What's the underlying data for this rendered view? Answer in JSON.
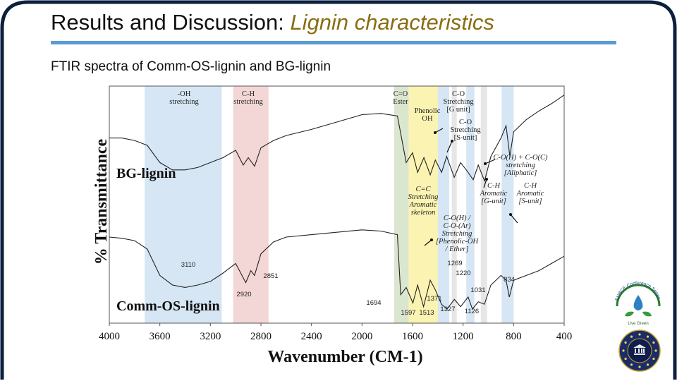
{
  "slide": {
    "title_main": "Results and Discussion: ",
    "title_highlight": "Lignin characteristics",
    "subtitle": "FTIR spectra of Comm-OS-lignin and BG-lignin"
  },
  "logos": {
    "conference_text": "EUBCE Conference Series",
    "conference_caption": "Live Green"
  },
  "colors": {
    "frame": "#0b1f3f",
    "title_rule": "#5b9bd5",
    "title_highlight": "#8a6d12",
    "band_blue": "#d6e6f4",
    "band_pink": "#f3d6d6",
    "band_green": "#dbe6cf",
    "band_yellow": "#fbf3b2",
    "band_grey": "#e6e6e6"
  },
  "chart_data": {
    "type": "line",
    "xlabel": "Wavenumber (CM-1)",
    "ylabel": "% Transmittance",
    "xlim": [
      4000,
      400
    ],
    "x_reversed": true,
    "x_ticks": [
      "4000",
      "3600",
      "3200",
      "2800",
      "2400",
      "2000",
      "1600",
      "1200",
      "800",
      "400"
    ],
    "grid": false,
    "series": [
      {
        "name": "BG-lignin",
        "x": [
          4000,
          3900,
          3800,
          3700,
          3600,
          3500,
          3400,
          3300,
          3200,
          3100,
          3000,
          2940,
          2900,
          2850,
          2800,
          2700,
          2600,
          2400,
          2200,
          2000,
          1850,
          1720,
          1650,
          1600,
          1560,
          1510,
          1460,
          1420,
          1370,
          1330,
          1270,
          1220,
          1160,
          1120,
          1080,
          1030,
          980,
          900,
          860,
          830,
          800,
          700,
          600,
          500,
          400
        ],
        "y": [
          0.4,
          0.4,
          0.42,
          0.46,
          0.6,
          0.66,
          0.66,
          0.64,
          0.6,
          0.56,
          0.5,
          0.62,
          0.56,
          0.63,
          0.48,
          0.42,
          0.38,
          0.33,
          0.27,
          0.21,
          0.2,
          0.22,
          0.6,
          0.52,
          0.68,
          0.56,
          0.7,
          0.58,
          0.68,
          0.55,
          0.72,
          0.6,
          0.68,
          0.74,
          0.62,
          0.75,
          0.55,
          0.4,
          0.3,
          0.55,
          0.35,
          0.25,
          0.18,
          0.12,
          0.05
        ]
      },
      {
        "name": "Comm-OS-lignin",
        "x": [
          4000,
          3900,
          3800,
          3700,
          3600,
          3500,
          3400,
          3300,
          3200,
          3100,
          3000,
          2920,
          2880,
          2851,
          2800,
          2700,
          2600,
          2400,
          2200,
          2000,
          1850,
          1720,
          1694,
          1650,
          1597,
          1560,
          1513,
          1460,
          1420,
          1371,
          1327,
          1269,
          1220,
          1160,
          1126,
          1080,
          1031,
          980,
          900,
          860,
          834,
          800,
          700,
          600,
          500,
          400
        ],
        "y": [
          0.3,
          0.31,
          0.33,
          0.4,
          0.62,
          0.7,
          0.72,
          0.7,
          0.67,
          0.6,
          0.52,
          0.68,
          0.58,
          0.62,
          0.44,
          0.34,
          0.3,
          0.28,
          0.26,
          0.24,
          0.25,
          0.28,
          0.78,
          0.72,
          0.85,
          0.7,
          0.88,
          0.66,
          0.74,
          0.86,
          0.9,
          0.82,
          0.88,
          0.8,
          0.9,
          0.84,
          0.86,
          0.7,
          0.62,
          0.66,
          0.8,
          0.66,
          0.62,
          0.58,
          0.52,
          0.46
        ]
      }
    ],
    "series_labels": [
      {
        "text": "BG-lignin"
      },
      {
        "text": "Comm-OS-lignin"
      }
    ],
    "bands": [
      {
        "from": 3720,
        "to": 3110,
        "color": "blue",
        "label": "-OH\nstretching"
      },
      {
        "from": 3020,
        "to": 2740,
        "color": "pink",
        "label": "C-H\nstretching"
      },
      {
        "from": 1745,
        "to": 1630,
        "color": "green",
        "label": "C=O\nEster"
      },
      {
        "from": 1630,
        "to": 1400,
        "color": "yellow",
        "label": "Phenolic\nOH"
      },
      {
        "from": 1400,
        "to": 1310,
        "color": "blue",
        "label": "C-O\nStretching\n[G unit]"
      },
      {
        "from": 1290,
        "to": 1250,
        "color": "grey",
        "label": "C-O\nStretching\n[S-unit]"
      },
      {
        "from": 1175,
        "to": 1110,
        "color": "blue",
        "label": ""
      },
      {
        "from": 1060,
        "to": 1010,
        "color": "grey",
        "label": ""
      },
      {
        "from": 895,
        "to": 800,
        "color": "blue",
        "label": ""
      }
    ],
    "annotations": [
      {
        "text": "C=C\nStretching\nAromatic\nskeleton"
      },
      {
        "text": "C-O(H) + C-O(C)\nstretching\n[Aliphatic]"
      },
      {
        "text": "C-H\nAromatic\n[G-unit]"
      },
      {
        "text": "C-H\nAromatic\n[S-unit]"
      },
      {
        "text": "C-O(H) /\nC-O-(Ar)\nStretching\n[Phenolic-OH\n/ Ether]"
      }
    ],
    "peak_labels": [
      "3110",
      "2920",
      "2851",
      "1694",
      "1597",
      "1513",
      "1371",
      "1327",
      "1269",
      "1220",
      "1126",
      "1031",
      "834"
    ]
  }
}
